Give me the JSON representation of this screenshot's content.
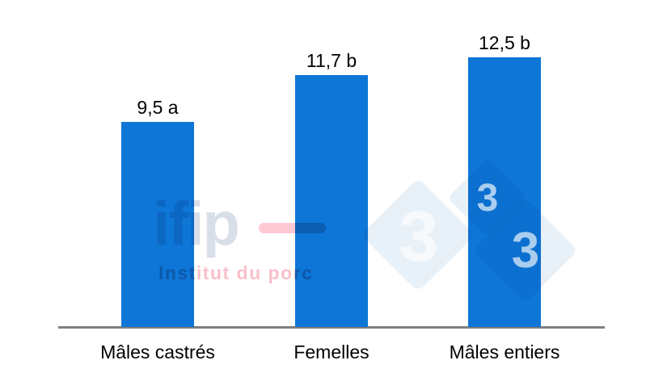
{
  "chart_data": {
    "type": "bar",
    "categories": [
      "Mâles castrés",
      "Femelles",
      "Mâles entiers"
    ],
    "values": [
      9.5,
      11.7,
      12.5
    ],
    "value_labels": [
      "9,5 a",
      "11,7 b",
      "12,5 b"
    ],
    "title": "",
    "xlabel": "",
    "ylabel": "",
    "ylim": [
      0,
      13
    ],
    "grid": false,
    "legend": false,
    "axis_visible": "baseline-only",
    "bar_color": "#0d76d6",
    "axis_line_color": "#7f7f7f",
    "label_color": "#000000"
  },
  "watermarks": {
    "ifip": {
      "logo_text": "ifip",
      "subtitle": "Institut du porc",
      "logo_color": "#d8dfe8",
      "dash_color": "#ffc9d4",
      "subtitle_color": "#f9c0cb"
    },
    "pig333": {
      "digits": [
        "3",
        "3",
        "3"
      ],
      "diamond_color": "#e9f1f8",
      "digit_color": "rgba(255,255,255,0.65)"
    }
  }
}
